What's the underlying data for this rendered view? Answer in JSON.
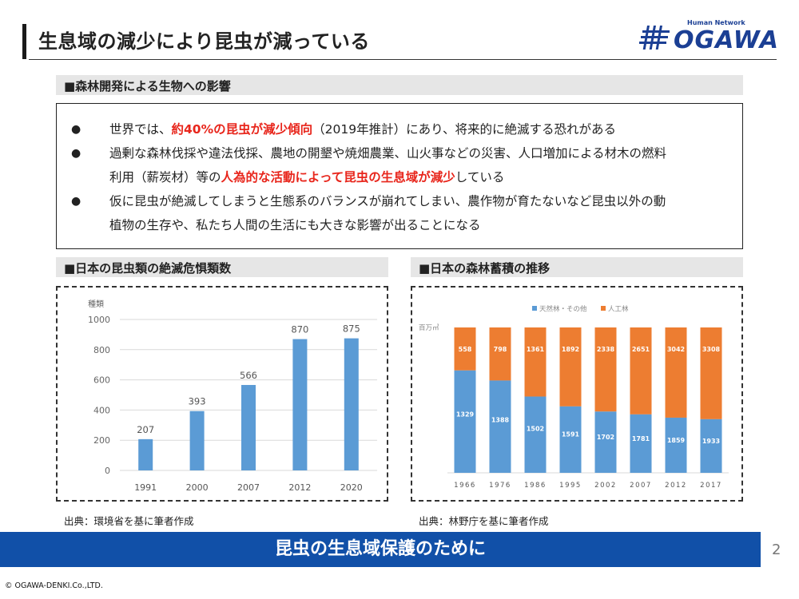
{
  "header": {
    "title": "生息域の減少により昆虫が減っている",
    "logo_small": "Human Network",
    "logo_text": "OGAWA"
  },
  "section_forest": {
    "heading": "■森林開発による生物への影響",
    "bullets": [
      {
        "marker": "●",
        "lines": [
          {
            "parts": [
              {
                "t": "世界では、"
              },
              {
                "t": "約40%の昆虫が減少傾向",
                "hl": true
              },
              {
                "t": "（2019年推計）にあり、将来的に絶滅する恐れがある"
              }
            ]
          }
        ]
      },
      {
        "marker": "●",
        "lines": [
          {
            "parts": [
              {
                "t": "過剰な森林伐採や違法伐採、農地の開墾や焼畑農業、山火事などの災害、人口増加による材木の燃料"
              }
            ]
          },
          {
            "parts": [
              {
                "t": "利用（薪炭材）等の"
              },
              {
                "t": "人為的な活動によって昆虫の生息域が減少",
                "hl": true
              },
              {
                "t": "している"
              }
            ]
          }
        ]
      },
      {
        "marker": "●",
        "lines": [
          {
            "parts": [
              {
                "t": "仮に昆虫が絶滅してしまうと生態系のバランスが崩れてしまい、農作物が育たないなど昆虫以外の動"
              }
            ]
          },
          {
            "parts": [
              {
                "t": "植物の生存や、私たち人間の生活にも大きな影響が出ることになる"
              }
            ]
          }
        ]
      }
    ]
  },
  "chart_insects_heading": "■日本の昆虫類の絶滅危惧類数",
  "chart_forest_heading": "■日本の森林蓄積の推移",
  "source_left": "出典：環境省を基に筆者作成",
  "source_right": "出典：林野庁を基に筆者作成",
  "banner": "昆虫の生息域保護のために",
  "page_number": "2",
  "copyright": "© OGAWA-DENKI.Co.,LTD.",
  "colors": {
    "bar_blue": "#5b9bd5",
    "bar_orange": "#ed7d31",
    "accent_red": "#e8261c",
    "banner_blue": "#1150a8"
  },
  "chart_data": [
    {
      "type": "bar",
      "title": "日本の昆虫類の絶滅危惧類数",
      "ylabel": "種類",
      "categories": [
        "1991",
        "2000",
        "2007",
        "2012",
        "2020"
      ],
      "values": [
        207,
        393,
        566,
        870,
        875
      ],
      "ylim": [
        0,
        1000
      ],
      "yticks": [
        0,
        200,
        400,
        600,
        800,
        1000
      ],
      "grid": true
    },
    {
      "type": "bar",
      "stacked": true,
      "normalized": true,
      "title": "日本の森林蓄積の推移",
      "ylabel": "百万㎥",
      "legend_position": "top",
      "categories": [
        "1966",
        "1976",
        "1986",
        "1995",
        "2002",
        "2007",
        "2012",
        "2017"
      ],
      "series": [
        {
          "name": "天然林・その他",
          "color": "#5b9bd5",
          "values": [
            1329,
            1388,
            1502,
            1591,
            1702,
            1781,
            1859,
            1933
          ]
        },
        {
          "name": "人工林",
          "color": "#ed7d31",
          "values": [
            558,
            798,
            1361,
            1892,
            2338,
            2651,
            3042,
            3308
          ]
        }
      ]
    }
  ]
}
